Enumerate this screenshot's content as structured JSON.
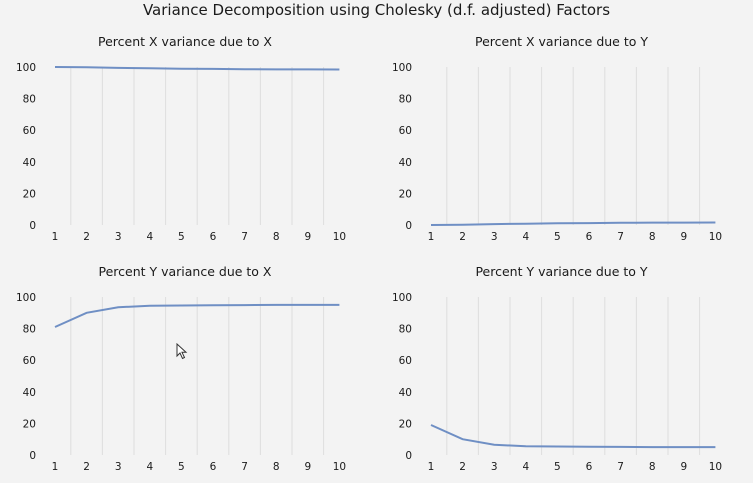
{
  "title": "Variance Decomposition using Cholesky (d.f. adjusted) Factors",
  "colors": {
    "series": "#6f8fc4",
    "grid": "#dedede",
    "background": "#f3f3f3"
  },
  "chart_data": [
    {
      "type": "line",
      "title": "Percent X variance due to X",
      "x": [
        1,
        2,
        3,
        4,
        5,
        6,
        7,
        8,
        9,
        10
      ],
      "series": [
        {
          "values": [
            100,
            99.8,
            99.4,
            99.2,
            98.9,
            98.8,
            98.6,
            98.5,
            98.5,
            98.4
          ]
        }
      ],
      "xticks": [
        "1",
        "2",
        "3",
        "4",
        "5",
        "6",
        "7",
        "8",
        "9",
        "10"
      ],
      "yticks": [
        "0",
        "20",
        "40",
        "60",
        "80",
        "100"
      ],
      "ylim": [
        0,
        100
      ],
      "grid": "vertical"
    },
    {
      "type": "line",
      "title": "Percent X variance due to Y",
      "x": [
        1,
        2,
        3,
        4,
        5,
        6,
        7,
        8,
        9,
        10
      ],
      "series": [
        {
          "values": [
            0,
            0.2,
            0.6,
            0.8,
            1.1,
            1.2,
            1.4,
            1.5,
            1.5,
            1.6
          ]
        }
      ],
      "xticks": [
        "1",
        "2",
        "3",
        "4",
        "5",
        "6",
        "7",
        "8",
        "9",
        "10"
      ],
      "yticks": [
        "0",
        "20",
        "40",
        "60",
        "80",
        "100"
      ],
      "ylim": [
        0,
        100
      ],
      "grid": "vertical"
    },
    {
      "type": "line",
      "title": "Percent Y variance due to X",
      "x": [
        1,
        2,
        3,
        4,
        5,
        6,
        7,
        8,
        9,
        10
      ],
      "series": [
        {
          "values": [
            81,
            90,
            93.5,
            94.5,
            94.6,
            94.8,
            94.9,
            95,
            95,
            95
          ]
        }
      ],
      "xticks": [
        "1",
        "2",
        "3",
        "4",
        "5",
        "6",
        "7",
        "8",
        "9",
        "10"
      ],
      "yticks": [
        "0",
        "20",
        "40",
        "60",
        "80",
        "100"
      ],
      "ylim": [
        0,
        100
      ],
      "grid": "vertical"
    },
    {
      "type": "line",
      "title": "Percent Y variance due to Y",
      "x": [
        1,
        2,
        3,
        4,
        5,
        6,
        7,
        8,
        9,
        10
      ],
      "series": [
        {
          "values": [
            19,
            10,
            6.5,
            5.5,
            5.4,
            5.2,
            5.1,
            5,
            5,
            5
          ]
        }
      ],
      "xticks": [
        "1",
        "2",
        "3",
        "4",
        "5",
        "6",
        "7",
        "8",
        "9",
        "10"
      ],
      "yticks": [
        "0",
        "20",
        "40",
        "60",
        "80",
        "100"
      ],
      "ylim": [
        0,
        100
      ],
      "grid": "vertical"
    }
  ]
}
